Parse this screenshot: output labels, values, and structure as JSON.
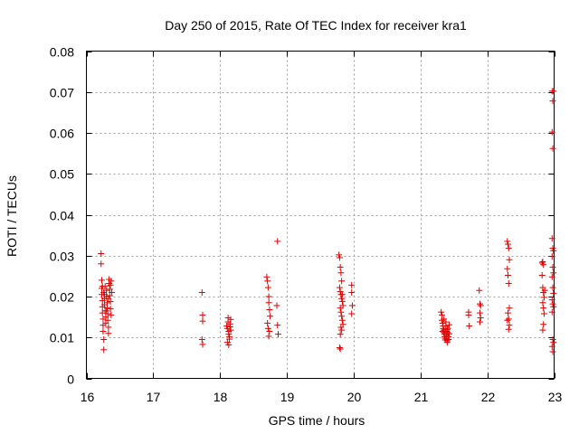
{
  "chart_data": {
    "type": "scatter",
    "title": "Day 250 of 2015, Rate Of TEC Index for receiver kra1",
    "xlabel": "GPS time / hours",
    "ylabel": "ROTI / TECUs",
    "xlim": [
      16,
      23
    ],
    "ylim": [
      0,
      0.08
    ],
    "x_ticks": [
      16,
      17,
      18,
      19,
      20,
      21,
      22,
      23
    ],
    "y_ticks": [
      0,
      0.01,
      0.02,
      0.03,
      0.04,
      0.05,
      0.06,
      0.07,
      0.08
    ],
    "x_tick_labels": [
      "16",
      "17",
      "18",
      "19",
      "20",
      "21",
      "22",
      "23"
    ],
    "y_tick_labels": [
      "0",
      "0.01",
      "0.02",
      "0.03",
      "0.04",
      "0.05",
      "0.06",
      "0.07",
      "0.08"
    ],
    "grid": true,
    "marker": "plus",
    "color": "#e00000",
    "points": [
      [
        16.22,
        0.0305
      ],
      [
        16.22,
        0.028
      ],
      [
        16.23,
        0.024
      ],
      [
        16.23,
        0.022
      ],
      [
        16.23,
        0.0205
      ],
      [
        16.24,
        0.019
      ],
      [
        16.24,
        0.0175
      ],
      [
        16.24,
        0.016
      ],
      [
        16.25,
        0.0145
      ],
      [
        16.25,
        0.013
      ],
      [
        16.25,
        0.0115
      ],
      [
        16.26,
        0.0095
      ],
      [
        16.26,
        0.007
      ],
      [
        16.26,
        0.021
      ],
      [
        16.27,
        0.0195
      ],
      [
        16.27,
        0.018
      ],
      [
        16.28,
        0.0225
      ],
      [
        16.28,
        0.0165
      ],
      [
        16.29,
        0.015
      ],
      [
        16.29,
        0.0135
      ],
      [
        16.3,
        0.0215
      ],
      [
        16.3,
        0.02
      ],
      [
        16.31,
        0.0185
      ],
      [
        16.31,
        0.0172
      ],
      [
        16.32,
        0.0158
      ],
      [
        16.32,
        0.0142
      ],
      [
        16.33,
        0.0125
      ],
      [
        16.33,
        0.011
      ],
      [
        16.34,
        0.0242
      ],
      [
        16.34,
        0.0232
      ],
      [
        16.35,
        0.0218
      ],
      [
        16.35,
        0.0202
      ],
      [
        16.36,
        0.0188
      ],
      [
        16.36,
        0.017
      ],
      [
        16.37,
        0.0155
      ],
      [
        16.37,
        0.0238
      ],
      [
        16.38,
        0.021
      ],
      [
        16.24,
        0.0225
      ],
      [
        16.27,
        0.0205
      ],
      [
        16.3,
        0.0165
      ],
      [
        16.33,
        0.0195
      ],
      [
        16.36,
        0.0228
      ],
      [
        17.73,
        0.021
      ],
      [
        17.74,
        0.0155
      ],
      [
        17.74,
        0.014
      ],
      [
        17.73,
        0.0095
      ],
      [
        17.74,
        0.0083
      ],
      [
        18.1,
        0.0128
      ],
      [
        18.11,
        0.0122
      ],
      [
        18.12,
        0.0148
      ],
      [
        18.12,
        0.0138
      ],
      [
        18.13,
        0.0115
      ],
      [
        18.13,
        0.0108
      ],
      [
        18.14,
        0.0102
      ],
      [
        18.14,
        0.0096
      ],
      [
        18.15,
        0.0133
      ],
      [
        18.15,
        0.0126
      ],
      [
        18.16,
        0.0118
      ],
      [
        18.11,
        0.0088
      ],
      [
        18.13,
        0.0082
      ],
      [
        18.16,
        0.0144
      ],
      [
        18.7,
        0.0248
      ],
      [
        18.71,
        0.0238
      ],
      [
        18.72,
        0.0222
      ],
      [
        18.73,
        0.02
      ],
      [
        18.73,
        0.0185
      ],
      [
        18.74,
        0.0168
      ],
      [
        18.75,
        0.0152
      ],
      [
        18.71,
        0.0135
      ],
      [
        18.72,
        0.0122
      ],
      [
        18.74,
        0.0115
      ],
      [
        18.73,
        0.0103
      ],
      [
        18.86,
        0.0335
      ],
      [
        18.85,
        0.0178
      ],
      [
        18.86,
        0.013
      ],
      [
        18.87,
        0.0108
      ],
      [
        19.78,
        0.0302
      ],
      [
        19.79,
        0.0295
      ],
      [
        19.8,
        0.0272
      ],
      [
        19.81,
        0.0258
      ],
      [
        19.82,
        0.0238
      ],
      [
        19.79,
        0.0222
      ],
      [
        19.8,
        0.0212
      ],
      [
        19.81,
        0.0205
      ],
      [
        19.82,
        0.0195
      ],
      [
        19.83,
        0.0188
      ],
      [
        19.8,
        0.0172
      ],
      [
        19.81,
        0.0162
      ],
      [
        19.82,
        0.0152
      ],
      [
        19.83,
        0.0142
      ],
      [
        19.84,
        0.0132
      ],
      [
        19.81,
        0.0125
      ],
      [
        19.82,
        0.0118
      ],
      [
        19.8,
        0.0108
      ],
      [
        19.79,
        0.0075
      ],
      [
        19.8,
        0.0072
      ],
      [
        19.83,
        0.0205
      ],
      [
        19.84,
        0.0178
      ],
      [
        19.97,
        0.0228
      ],
      [
        19.97,
        0.021
      ],
      [
        19.98,
        0.0178
      ],
      [
        19.97,
        0.0158
      ],
      [
        21.31,
        0.0162
      ],
      [
        21.32,
        0.0155
      ],
      [
        21.32,
        0.0142
      ],
      [
        21.33,
        0.0135
      ],
      [
        21.34,
        0.0128
      ],
      [
        21.34,
        0.0122
      ],
      [
        21.35,
        0.0118
      ],
      [
        21.35,
        0.0112
      ],
      [
        21.36,
        0.0108
      ],
      [
        21.36,
        0.0102
      ],
      [
        21.37,
        0.0098
      ],
      [
        21.37,
        0.0094
      ],
      [
        21.38,
        0.0128
      ],
      [
        21.38,
        0.0115
      ],
      [
        21.39,
        0.0105
      ],
      [
        21.39,
        0.0098
      ],
      [
        21.4,
        0.0092
      ],
      [
        21.4,
        0.0088
      ],
      [
        21.41,
        0.0122
      ],
      [
        21.41,
        0.0112
      ],
      [
        21.42,
        0.0102
      ],
      [
        21.42,
        0.0095
      ],
      [
        21.43,
        0.0131
      ],
      [
        21.43,
        0.0109
      ],
      [
        21.33,
        0.0115
      ],
      [
        21.35,
        0.0145
      ],
      [
        21.38,
        0.0138
      ],
      [
        21.4,
        0.0119
      ],
      [
        21.72,
        0.0162
      ],
      [
        21.72,
        0.0155
      ],
      [
        21.73,
        0.0128
      ],
      [
        21.88,
        0.0215
      ],
      [
        21.89,
        0.0182
      ],
      [
        21.9,
        0.0178
      ],
      [
        21.89,
        0.016
      ],
      [
        21.9,
        0.0148
      ],
      [
        21.89,
        0.0138
      ],
      [
        22.3,
        0.0335
      ],
      [
        22.31,
        0.0328
      ],
      [
        22.32,
        0.0318
      ],
      [
        22.33,
        0.029
      ],
      [
        22.3,
        0.0268
      ],
      [
        22.31,
        0.0252
      ],
      [
        22.32,
        0.0232
      ],
      [
        22.33,
        0.0172
      ],
      [
        22.31,
        0.016
      ],
      [
        22.32,
        0.0145
      ],
      [
        22.33,
        0.013
      ],
      [
        22.32,
        0.012
      ],
      [
        22.3,
        0.0142
      ],
      [
        22.82,
        0.0282
      ],
      [
        22.83,
        0.0285
      ],
      [
        22.84,
        0.0278
      ],
      [
        22.82,
        0.0252
      ],
      [
        22.83,
        0.0222
      ],
      [
        22.84,
        0.021
      ],
      [
        22.85,
        0.0198
      ],
      [
        22.83,
        0.0185
      ],
      [
        22.84,
        0.0172
      ],
      [
        22.85,
        0.0158
      ],
      [
        22.84,
        0.0132
      ],
      [
        22.83,
        0.0118
      ],
      [
        22.86,
        0.0215
      ],
      [
        22.97,
        0.0702
      ],
      [
        22.98,
        0.0678
      ],
      [
        22.97,
        0.0602
      ],
      [
        22.98,
        0.0562
      ],
      [
        22.97,
        0.0342
      ],
      [
        22.98,
        0.0318
      ],
      [
        22.99,
        0.0312
      ],
      [
        22.97,
        0.0298
      ],
      [
        22.98,
        0.0272
      ],
      [
        22.99,
        0.0258
      ],
      [
        22.97,
        0.0248
      ],
      [
        22.98,
        0.0222
      ],
      [
        22.99,
        0.0208
      ],
      [
        22.97,
        0.0192
      ],
      [
        22.98,
        0.0182
      ],
      [
        22.99,
        0.0175
      ],
      [
        22.97,
        0.0162
      ],
      [
        22.98,
        0.0095
      ],
      [
        22.99,
        0.0088
      ],
      [
        22.97,
        0.0078
      ],
      [
        22.98,
        0.0065
      ],
      [
        22.99,
        0.0702
      ]
    ]
  }
}
